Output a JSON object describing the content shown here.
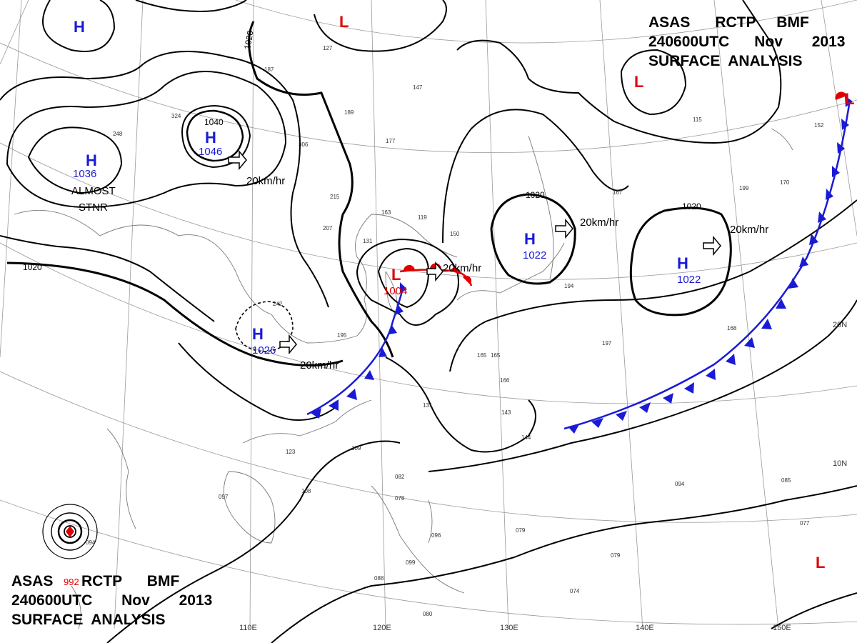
{
  "titles": {
    "top": {
      "line1": "ASAS      RCTP     BMF",
      "line2": "240600UTC      Nov       2013",
      "line3": "SURFACE  ANALYSIS"
    },
    "bottom": {
      "asas": "ASAS",
      "pressure": "992",
      "line1_rest": "RCTP      BMF",
      "line2": "240600UTC       Nov       2013",
      "line3": "SURFACE  ANALYSIS"
    }
  },
  "highs": [
    {
      "label": "H",
      "value": ""
    },
    {
      "label": "H",
      "value": "1036"
    },
    {
      "label": "H",
      "value": "1046"
    },
    {
      "label": "H",
      "value": "1026"
    },
    {
      "label": "H",
      "value": "1022"
    },
    {
      "label": "H",
      "value": "1022"
    }
  ],
  "lows": [
    {
      "label": "L",
      "value": ""
    },
    {
      "label": "L",
      "value": "1004"
    },
    {
      "label": "L",
      "value": ""
    },
    {
      "label": "L",
      "value": ""
    },
    {
      "label": "L",
      "value": ""
    }
  ],
  "movement_labels": [
    "20km/hr",
    "20km/hr",
    "20km/hr",
    "20km/hr",
    "20km/hr"
  ],
  "isobar_labels": [
    "1020",
    "1040",
    "1020",
    "1020",
    "1020"
  ],
  "notes": [
    "ALMOST",
    "STNR"
  ],
  "grid_labels": {
    "longitude": [
      "110E",
      "120E",
      "130E",
      "140E",
      "150E"
    ],
    "latitude": [
      "20N",
      "10N"
    ]
  },
  "station_samples": [
    "248",
    "324",
    "187",
    "127",
    "147",
    "189",
    "177",
    "306",
    "215",
    "163",
    "119",
    "131",
    "150",
    "207",
    "242",
    "195",
    "165",
    "166",
    "143",
    "131",
    "144",
    "109",
    "123",
    "097",
    "108",
    "094",
    "082",
    "078",
    "096",
    "099",
    "088",
    "080",
    "074",
    "079",
    "194",
    "199",
    "170",
    "152",
    "115",
    "167",
    "197",
    "168",
    "165",
    "085",
    "077",
    "094",
    "079"
  ],
  "colors": {
    "high": "#1a1ad6",
    "low": "#e00000",
    "cold_front": "#1a1ad6",
    "warm_front": "#e00000",
    "isobar": "#000000",
    "grid": "#9a9a9a"
  }
}
